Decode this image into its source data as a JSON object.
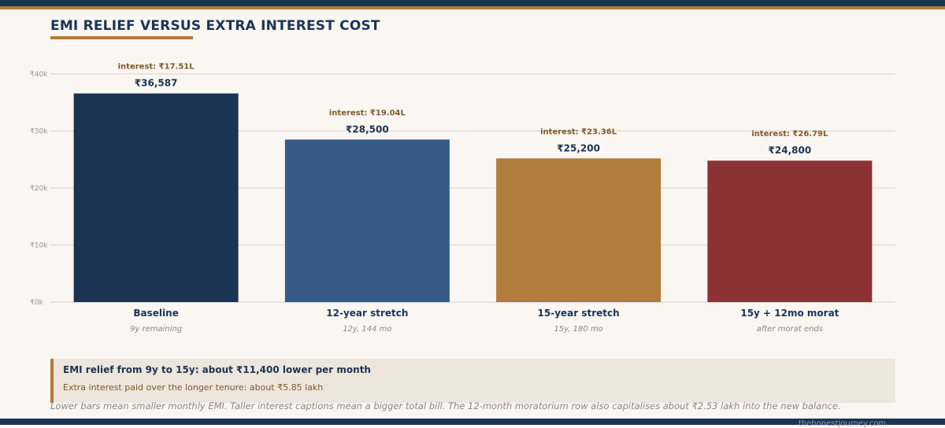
{
  "title": "EMI RELIEF VERSUS EXTRA INTEREST COST",
  "chart_data": {
    "type": "bar",
    "categories": [
      "Baseline",
      "12-year stretch",
      "15-year stretch",
      "15y + 12mo morat"
    ],
    "subtitles": [
      "9y remaining",
      "12y, 144 mo",
      "15y, 180 mo",
      "after morat ends"
    ],
    "values": [
      36587,
      28500,
      25200,
      24800
    ],
    "value_labels": [
      "₹36,587",
      "₹28,500",
      "₹25,200",
      "₹24,800"
    ],
    "interest_labels": [
      "interest: ₹17.51L",
      "interest: ₹19.04L",
      "interest: ₹23.36L",
      "interest: ₹26.79L"
    ],
    "colors": [
      "#1c3454",
      "#375a87",
      "#b07d3c",
      "#8b3234"
    ],
    "ylim": [
      0,
      40000
    ],
    "yticks": [
      0,
      10000,
      20000,
      30000,
      40000
    ],
    "ytick_labels": [
      "₹0k",
      "₹10k",
      "₹20k",
      "₹30k",
      "₹40k"
    ],
    "grid": true
  },
  "callout": {
    "headline": "EMI relief from 9y to 15y: about ₹11,400 lower per month",
    "detail": "Extra interest paid over the longer tenure: about ₹5.85 lakh"
  },
  "footnote": "Lower bars mean smaller monthly EMI. Taller interest captions mean a bigger total bill. The 12-month moratorium row also capitalises about ₹2.53 lakh into the new balance.",
  "credit": "thehonestjourney.com"
}
